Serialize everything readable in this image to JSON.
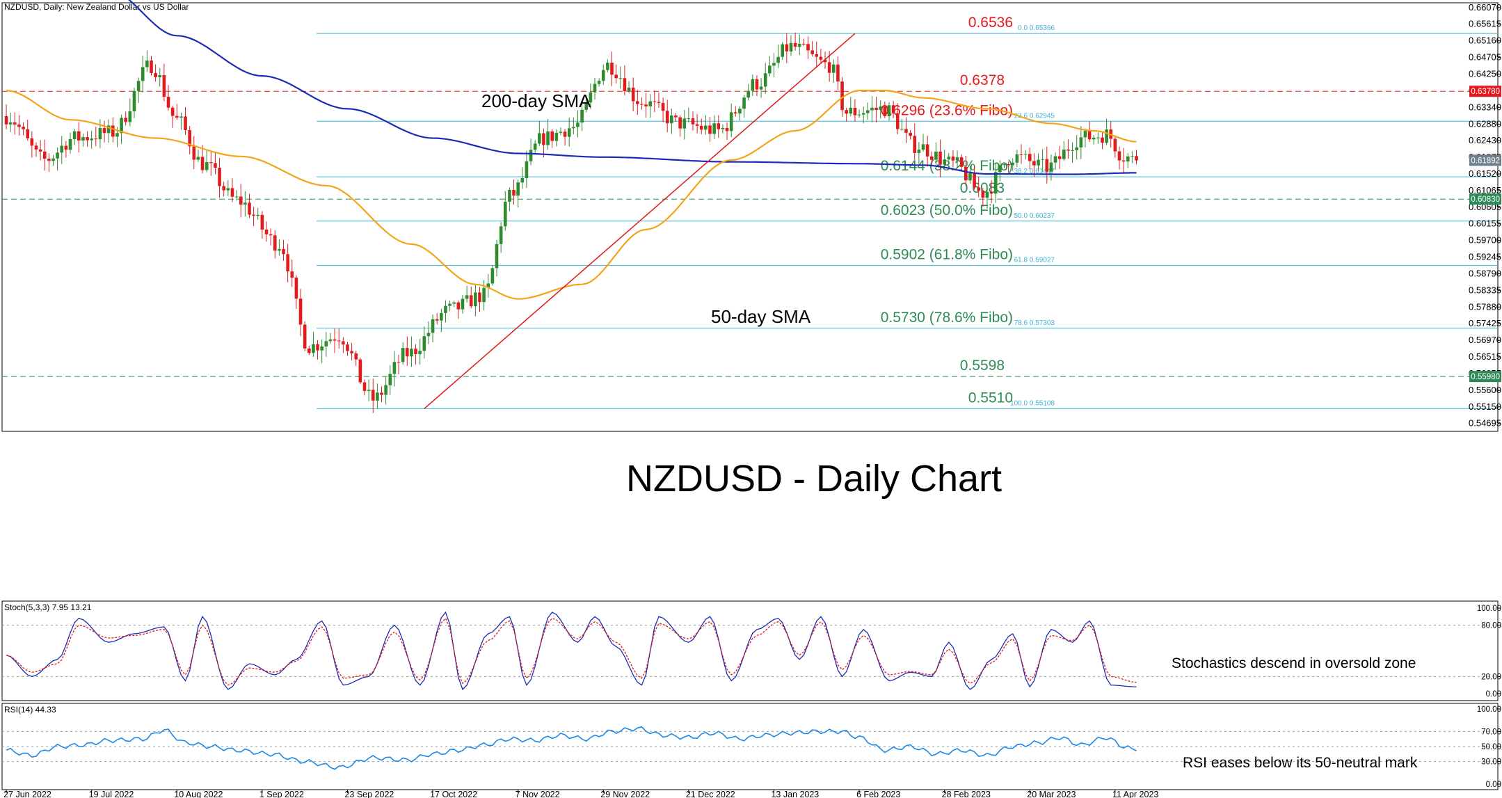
{
  "header": {
    "title": "NZDUSD, Daily:  New Zealand Dollar vs US Dollar"
  },
  "chart_data": [
    {
      "type": "candlestick",
      "title": "NZDUSD - Daily Chart",
      "ylim": [
        0.5448,
        0.662
      ],
      "y_ticks": [
        "0.66070",
        "0.65615",
        "0.65160",
        "0.64705",
        "0.64250",
        "0.63795",
        "0.63340",
        "0.62880",
        "0.62430",
        "0.61975",
        "0.61520",
        "0.61065",
        "0.60605",
        "0.60155",
        "0.59700",
        "0.59245",
        "0.58790",
        "0.58335",
        "0.57880",
        "0.57425",
        "0.56970",
        "0.56515",
        "0.56055",
        "0.55600",
        "0.55150",
        "0.54695"
      ],
      "x_ticks": [
        "27 Jun 2022",
        "19 Jul 2022",
        "10 Aug 2022",
        "1 Sep 2022",
        "23 Sep 2022",
        "17 Oct 2022",
        "7 Nov 2022",
        "29 Nov 2022",
        "21 Dec 2022",
        "13 Jan 2023",
        "6 Feb 2023",
        "28 Feb 2023",
        "20 Mar 2023",
        "11 Apr 2023"
      ],
      "last_price_label": "0.61892",
      "colors": {
        "up": "#2e8b2e",
        "down": "#e11b1b",
        "sma200": "#1b2cb3",
        "sma50": "#f5a31a",
        "fibo": "#3ab4d6",
        "trend": "#e01818"
      },
      "anchors": [
        [
          0,
          0.631
        ],
        [
          9,
          0.619
        ],
        [
          16,
          0.625
        ],
        [
          25,
          0.6265
        ],
        [
          34,
          0.645
        ],
        [
          40,
          0.63
        ],
        [
          46,
          0.618
        ],
        [
          54,
          0.608
        ],
        [
          64,
          0.596
        ],
        [
          71,
          0.568
        ],
        [
          78,
          0.571
        ],
        [
          86,
          0.5535
        ],
        [
          94,
          0.566
        ],
        [
          104,
          0.578
        ],
        [
          112,
          0.582
        ],
        [
          118,
          0.609
        ],
        [
          126,
          0.625
        ],
        [
          133,
          0.628
        ],
        [
          141,
          0.645
        ],
        [
          149,
          0.635
        ],
        [
          158,
          0.629
        ],
        [
          167,
          0.627
        ],
        [
          176,
          0.64
        ],
        [
          184,
          0.65
        ],
        [
          193,
          0.645
        ],
        [
          197,
          0.632
        ],
        [
          206,
          0.633
        ],
        [
          213,
          0.623
        ],
        [
          222,
          0.618
        ],
        [
          229,
          0.61
        ],
        [
          236,
          0.62
        ],
        [
          244,
          0.617
        ],
        [
          252,
          0.625
        ],
        [
          258,
          0.626
        ],
        [
          262,
          0.62
        ],
        [
          265,
          0.6189
        ]
      ],
      "series": [
        {
          "name": "200-day SMA",
          "anchors": [
            [
              24,
              0.6655
            ],
            [
              40,
              0.653
            ],
            [
              60,
              0.642
            ],
            [
              80,
              0.633
            ],
            [
              100,
              0.625
            ],
            [
              120,
              0.6208
            ],
            [
              140,
              0.6198
            ],
            [
              170,
              0.6185
            ],
            [
              200,
              0.618
            ],
            [
              215,
              0.6176
            ],
            [
              230,
              0.6152
            ],
            [
              250,
              0.6151
            ],
            [
              265,
              0.6155
            ]
          ]
        },
        {
          "name": "50-day SMA",
          "anchors": [
            [
              0,
              0.638
            ],
            [
              15,
              0.63
            ],
            [
              35,
              0.625
            ],
            [
              55,
              0.62
            ],
            [
              75,
              0.612
            ],
            [
              95,
              0.596
            ],
            [
              110,
              0.585
            ],
            [
              120,
              0.581
            ],
            [
              135,
              0.585
            ],
            [
              150,
              0.6
            ],
            [
              170,
              0.619
            ],
            [
              185,
              0.627
            ],
            [
              200,
              0.638
            ],
            [
              206,
              0.638
            ],
            [
              215,
              0.636
            ],
            [
              230,
              0.633
            ],
            [
              245,
              0.629
            ],
            [
              255,
              0.627
            ],
            [
              265,
              0.624
            ]
          ]
        }
      ],
      "trendline": [
        [
          98,
          0.551
        ],
        [
          199,
          0.6536
        ]
      ],
      "fibonacci": [
        {
          "ratio": "0.0",
          "level": 0.6536,
          "axis_text": "0.0 0.65366",
          "label": "0.6536",
          "color": "#e8191c"
        },
        {
          "ratio": "23.6",
          "level": 0.6296,
          "axis_text": "23.6 0.62945",
          "label": "0.6296 (23.6% Fibo)",
          "color": "#e8191c"
        },
        {
          "ratio": "38.2",
          "level": 0.6144,
          "axis_text": "38.2 0.61447",
          "label": "0.6144 (38.2% Fibo)",
          "color": "#2e8b57"
        },
        {
          "ratio": "50.0",
          "level": 0.6023,
          "axis_text": "50.0 0.60237",
          "label": "0.6023 (50.0% Fibo)",
          "color": "#2e8b57"
        },
        {
          "ratio": "61.8",
          "level": 0.5902,
          "axis_text": "61.8 0.59027",
          "label": "0.5902 (61.8% Fibo)",
          "color": "#2e8b57"
        },
        {
          "ratio": "78.6",
          "level": 0.573,
          "axis_text": "78.6 0.57303",
          "label": "0.5730 (78.6% Fibo)",
          "color": "#2e8b57"
        },
        {
          "ratio": "100.0",
          "level": 0.551,
          "axis_text": "100.0 0.55108",
          "label": "0.5510",
          "color": "#2e8b57"
        }
      ],
      "horizontal_levels": [
        {
          "level": 0.6378,
          "label": "0.6378",
          "axis_text": "0.63780",
          "color": "#e8191c"
        },
        {
          "level": 0.6083,
          "label": "0.6083",
          "axis_text": "0.60830",
          "color": "#2e8b57"
        },
        {
          "level": 0.5598,
          "label": "0.5598",
          "axis_text": "0.55980",
          "color": "#2e8b57"
        }
      ],
      "annotations": {
        "sma200": "200-day SMA",
        "sma50": "50-day SMA"
      }
    },
    {
      "type": "line",
      "title": "Stoch(5,3,3) 7.95 13.21",
      "ylim": [
        0,
        100
      ],
      "y_ticks": [
        "100.00",
        "80.00",
        "20.00",
        "0.00"
      ],
      "annotation": "Stochastics descend in oversold zone",
      "series": [
        {
          "name": "%K",
          "color": "#1b2cb3",
          "anchors": [
            [
              0,
              45
            ],
            [
              6,
              20
            ],
            [
              12,
              40
            ],
            [
              17,
              88
            ],
            [
              24,
              60
            ],
            [
              30,
              70
            ],
            [
              37,
              78
            ],
            [
              42,
              15
            ],
            [
              46,
              90
            ],
            [
              52,
              5
            ],
            [
              57,
              35
            ],
            [
              63,
              22
            ],
            [
              68,
              40
            ],
            [
              74,
              85
            ],
            [
              79,
              10
            ],
            [
              85,
              20
            ],
            [
              91,
              80
            ],
            [
              97,
              10
            ],
            [
              103,
              95
            ],
            [
              107,
              5
            ],
            [
              113,
              70
            ],
            [
              118,
              90
            ],
            [
              122,
              10
            ],
            [
              128,
              95
            ],
            [
              134,
              60
            ],
            [
              138,
              90
            ],
            [
              143,
              55
            ],
            [
              149,
              10
            ],
            [
              153,
              90
            ],
            [
              160,
              60
            ],
            [
              165,
              90
            ],
            [
              170,
              15
            ],
            [
              176,
              75
            ],
            [
              181,
              88
            ],
            [
              186,
              40
            ],
            [
              191,
              90
            ],
            [
              196,
              20
            ],
            [
              201,
              75
            ],
            [
              207,
              15
            ],
            [
              212,
              25
            ],
            [
              217,
              20
            ],
            [
              221,
              60
            ],
            [
              226,
              5
            ],
            [
              231,
              40
            ],
            [
              236,
              70
            ],
            [
              240,
              8
            ],
            [
              245,
              75
            ],
            [
              250,
              60
            ],
            [
              254,
              85
            ],
            [
              259,
              10
            ],
            [
              265,
              7.95
            ]
          ]
        },
        {
          "name": "%D",
          "color": "#e01818",
          "anchors": [
            [
              0,
              45
            ],
            [
              6,
              25
            ],
            [
              12,
              35
            ],
            [
              17,
              80
            ],
            [
              24,
              65
            ],
            [
              30,
              68
            ],
            [
              37,
              75
            ],
            [
              42,
              22
            ],
            [
              46,
              80
            ],
            [
              52,
              10
            ],
            [
              57,
              30
            ],
            [
              63,
              25
            ],
            [
              68,
              38
            ],
            [
              74,
              78
            ],
            [
              79,
              18
            ],
            [
              85,
              22
            ],
            [
              91,
              72
            ],
            [
              97,
              16
            ],
            [
              103,
              88
            ],
            [
              107,
              12
            ],
            [
              113,
              62
            ],
            [
              118,
              85
            ],
            [
              122,
              18
            ],
            [
              128,
              88
            ],
            [
              134,
              64
            ],
            [
              138,
              84
            ],
            [
              143,
              60
            ],
            [
              149,
              18
            ],
            [
              153,
              82
            ],
            [
              160,
              64
            ],
            [
              165,
              84
            ],
            [
              170,
              22
            ],
            [
              176,
              68
            ],
            [
              181,
              84
            ],
            [
              186,
              45
            ],
            [
              191,
              84
            ],
            [
              196,
              28
            ],
            [
              201,
              68
            ],
            [
              207,
              22
            ],
            [
              212,
              26
            ],
            [
              217,
              22
            ],
            [
              221,
              52
            ],
            [
              226,
              12
            ],
            [
              231,
              36
            ],
            [
              236,
              64
            ],
            [
              240,
              15
            ],
            [
              245,
              68
            ],
            [
              250,
              62
            ],
            [
              254,
              80
            ],
            [
              259,
              20
            ],
            [
              265,
              13.21
            ]
          ]
        }
      ]
    },
    {
      "type": "line",
      "title": "RSI(14) 44.33",
      "ylim": [
        0,
        100
      ],
      "y_ticks": [
        "100.00",
        "70.00",
        "50.00",
        "30.00",
        "0.00"
      ],
      "annotation": "RSI eases below its 50-neutral mark",
      "series": [
        {
          "name": "RSI",
          "color": "#1e88e5",
          "anchors": [
            [
              0,
              45
            ],
            [
              6,
              38
            ],
            [
              12,
              50
            ],
            [
              18,
              52
            ],
            [
              24,
              58
            ],
            [
              32,
              60
            ],
            [
              37,
              72
            ],
            [
              42,
              55
            ],
            [
              48,
              50
            ],
            [
              54,
              45
            ],
            [
              62,
              40
            ],
            [
              70,
              30
            ],
            [
              78,
              22
            ],
            [
              86,
              35
            ],
            [
              94,
              32
            ],
            [
              100,
              40
            ],
            [
              106,
              45
            ],
            [
              112,
              52
            ],
            [
              118,
              60
            ],
            [
              124,
              58
            ],
            [
              130,
              65
            ],
            [
              136,
              60
            ],
            [
              142,
              70
            ],
            [
              148,
              74
            ],
            [
              154,
              65
            ],
            [
              160,
              62
            ],
            [
              166,
              68
            ],
            [
              172,
              60
            ],
            [
              178,
              65
            ],
            [
              184,
              68
            ],
            [
              190,
              70
            ],
            [
              196,
              70
            ],
            [
              200,
              62
            ],
            [
              206,
              45
            ],
            [
              212,
              50
            ],
            [
              218,
              40
            ],
            [
              224,
              45
            ],
            [
              230,
              38
            ],
            [
              236,
              50
            ],
            [
              242,
              55
            ],
            [
              247,
              62
            ],
            [
              252,
              52
            ],
            [
              258,
              62
            ],
            [
              262,
              50
            ],
            [
              265,
              44.33
            ]
          ]
        }
      ]
    }
  ]
}
